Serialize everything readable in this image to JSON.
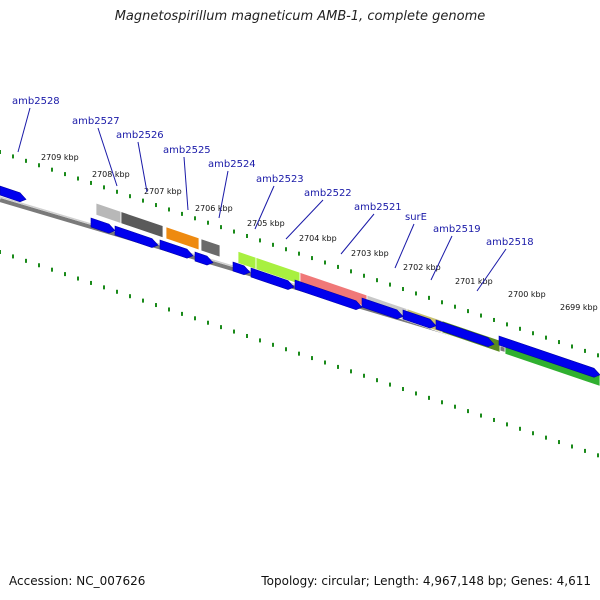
{
  "title": "Magnetospirillum magneticum AMB-1, complete genome",
  "footer": {
    "accession": "Accession: NC_007626",
    "summary": "Topology: circular; Length: 4,967,148 bp; Genes: 4,611"
  },
  "gene_labels": [
    "amb2528",
    "amb2527",
    "amb2526",
    "amb2525",
    "amb2524",
    "amb2523",
    "amb2522",
    "amb2521",
    "surE",
    "amb2519",
    "amb2518"
  ],
  "kbp_labels": [
    "2709 kbp",
    "2708 kbp",
    "2707 kbp",
    "2706 kbp",
    "2705 kbp",
    "2704 kbp",
    "2703 kbp",
    "2702 kbp",
    "2701 kbp",
    "2700 kbp",
    "2699 kbp"
  ],
  "colors": {
    "gene_arrow": "#0000ee",
    "tick": "#1a8a1a",
    "backbone": "#7a7a7a",
    "label_line": "#1a1aa8"
  },
  "ortholog_blocks": [
    {
      "color": "#b8b8b8"
    },
    {
      "color": "#5a5a5a"
    },
    {
      "color": "#ee8a10"
    },
    {
      "color": "#6a6a6a"
    },
    {
      "color": "#a8f040"
    },
    {
      "color": "#a8f040"
    },
    {
      "color": "#f07878"
    },
    {
      "color": "#c8c8c8"
    },
    {
      "color": "#c8c070"
    },
    {
      "color": "#5a8a20"
    },
    {
      "color": "#30b030"
    }
  ]
}
